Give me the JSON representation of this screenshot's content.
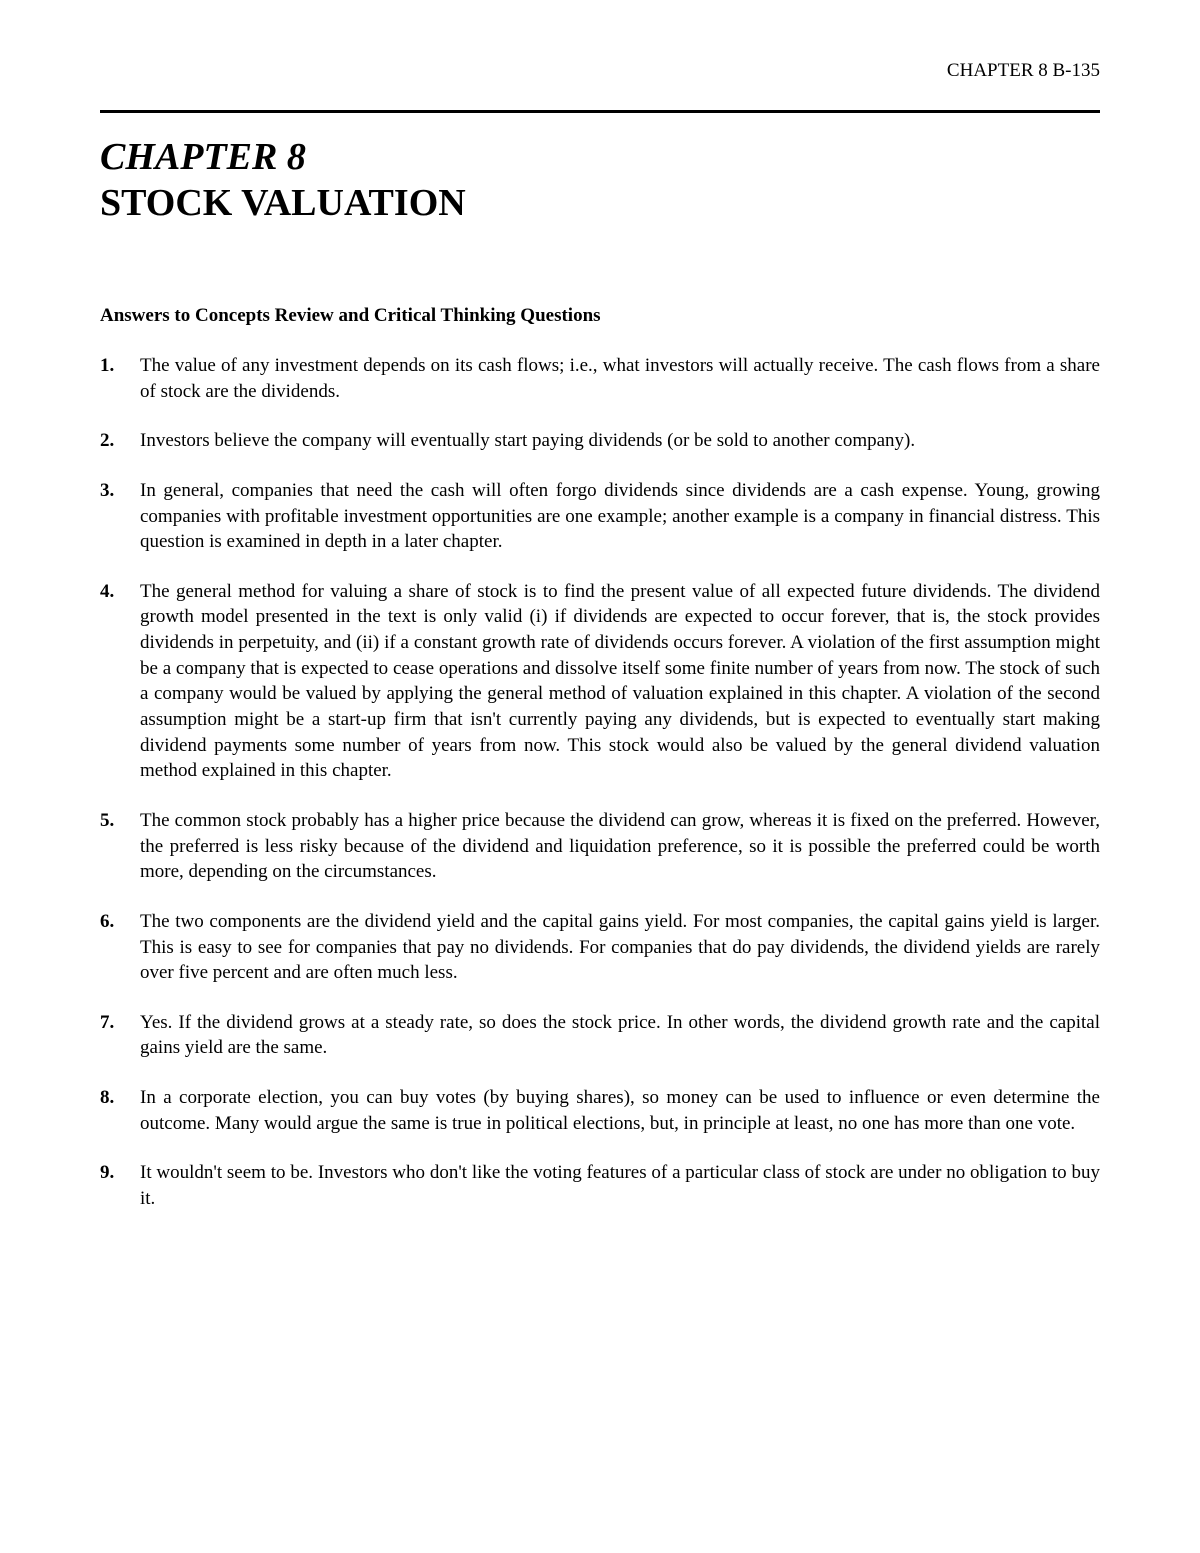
{
  "page_header": "CHAPTER 8  B-135",
  "chapter_number": "CHAPTER 8",
  "chapter_title": "STOCK VALUATION",
  "section_heading": "Answers to Concepts Review and Critical Thinking Questions",
  "questions": [
    {
      "num": "1.",
      "text": "The value of any investment depends on its cash flows; i.e., what investors will actually receive. The cash flows from a share of stock are the dividends."
    },
    {
      "num": "2.",
      "text": "Investors believe the company will eventually start paying dividends (or be sold to another company)."
    },
    {
      "num": "3.",
      "text": "In general, companies that need the cash will often forgo dividends since dividends are a cash expense. Young, growing companies with profitable investment opportunities are one example; another example is a company in financial distress. This question is examined in depth in a later chapter."
    },
    {
      "num": "4.",
      "text": "The general method for valuing a share of stock is to find the present value of all expected future dividends. The dividend growth model presented in the text is only valid (i) if dividends are expected to occur forever, that is, the stock provides dividends in perpetuity, and (ii) if a constant growth rate of dividends occurs forever. A violation of the first assumption might be a company that is expected to cease operations and dissolve itself some finite number of years from now. The stock of such a company would be valued by applying the general method of valuation explained in this chapter. A violation of the second assumption might be a start-up firm that isn't currently paying any dividends, but is expected to eventually start making dividend payments some number of years from now. This stock would also be valued by the general dividend valuation method explained in this chapter."
    },
    {
      "num": "5.",
      "text": "The common stock probably has a higher price because the dividend can grow, whereas it is fixed on the preferred. However, the preferred is less risky because of the dividend and liquidation preference, so it is possible the preferred could be worth more, depending on the circumstances."
    },
    {
      "num": "6.",
      "text": "The two components are the dividend yield and the capital gains yield. For most companies, the capital gains yield is larger. This is easy to see for companies that pay no dividends. For companies that do pay dividends, the dividend yields are rarely over five percent and are often much less."
    },
    {
      "num": "7.",
      "text": "Yes. If the dividend grows at a steady rate, so does the stock price. In other words, the dividend growth rate and the capital gains yield are the same."
    },
    {
      "num": "8.",
      "text": "In a corporate election, you can buy votes (by buying shares), so money can be used to influence or even determine the outcome. Many would argue the same is true in political elections, but, in principle at least, no one has more than one vote."
    },
    {
      "num": "9.",
      "text": "It wouldn't seem to be. Investors who don't like the voting features of a particular class of stock are under no obligation to buy it."
    }
  ],
  "colors": {
    "text": "#000000",
    "background": "#ffffff",
    "rule": "#000000"
  },
  "typography": {
    "body_font": "Times New Roman",
    "header_fontsize": 19,
    "chapter_fontsize": 38,
    "section_fontsize": 19,
    "body_fontsize": 19
  }
}
